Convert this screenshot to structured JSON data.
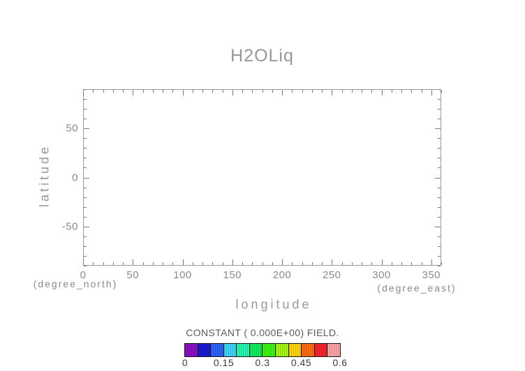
{
  "title": "H2OLiq",
  "chart_data": {
    "type": "heatmap",
    "title": "H2OLiq",
    "xlabel": "longitude",
    "ylabel": "latitude",
    "x_units": "(degree_east)",
    "y_units": "(degree_north)",
    "xlim": [
      0,
      360
    ],
    "ylim": [
      -90,
      90
    ],
    "grid": false,
    "x_axis": {
      "min": 0,
      "max": 360,
      "minor_step": 10,
      "major_step": 50,
      "labels": [
        0,
        50,
        100,
        150,
        200,
        250,
        300,
        350
      ]
    },
    "y_axis": {
      "min": -90,
      "max": 90,
      "minor_step": 10,
      "major_step": 50,
      "labels": [
        -50,
        0,
        50
      ]
    },
    "values": "constant field equal to 0.000E+00 everywhere; plot area is empty",
    "note": "CONSTANT ( 0.000E+00) FIELD.",
    "colorbar": {
      "min": 0,
      "max": 0.6,
      "tick_labels": [
        "0",
        "0.15",
        "0.3",
        "0.45",
        "0.6"
      ],
      "segment_colors": [
        "#8a10c4",
        "#1a1ad2",
        "#2b62f8",
        "#3ed3f8",
        "#22f6b2",
        "#0cee5a",
        "#3df513",
        "#a4f80b",
        "#fed608",
        "#fb6b12",
        "#f8232c",
        "#fba3a6"
      ]
    }
  },
  "colors": {
    "background": "#ffffff",
    "frame": "#9a9a9a",
    "tick": "#7a7a7a",
    "axis_text": "#8a8a8a",
    "title_text": "#979797",
    "note_text": "#5a5a5a",
    "colorbar_border": "#1a1a1a",
    "colorbar_label_text": "#3d3d3d"
  }
}
